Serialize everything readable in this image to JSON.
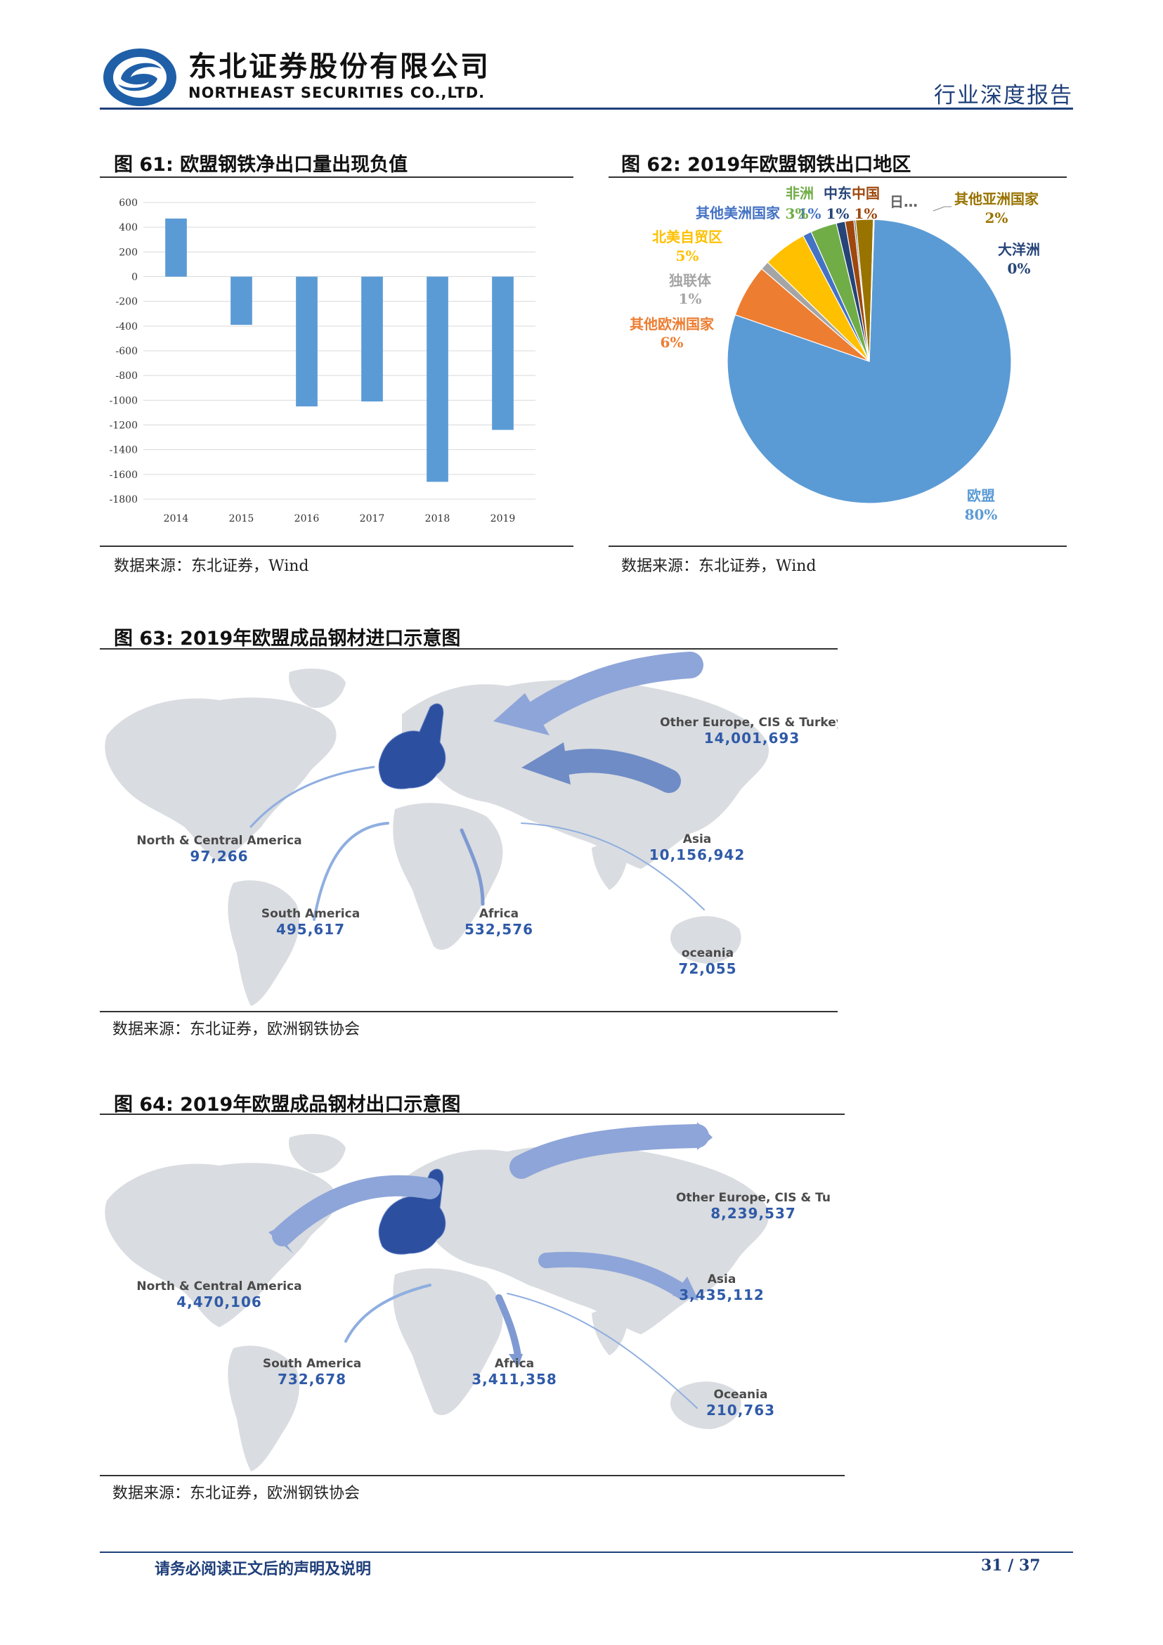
{
  "header": {
    "company_cn": "东北证券股份有限公司",
    "company_en": "NORTHEAST SECURITIES CO.,LTD.",
    "report_type": "行业深度报告",
    "brand_color": "#1f3f7a"
  },
  "figures": [
    {
      "title": "图 61:  欧盟钢铁净出口量出现负值",
      "source": "数据来源：东北证券，Wind"
    },
    {
      "title": "图 62:  2019年欧盟钢铁出口地区",
      "source": "数据来源：东北证券，Wind"
    },
    {
      "title": "图 63:  2019年欧盟成品钢材进口示意图",
      "source": "数据来源：东北证券，欧洲钢铁协会"
    },
    {
      "title": "图 64:  2019年欧盟成品钢材出口示意图",
      "source": "数据来源：东北证券，欧洲钢铁协会"
    }
  ],
  "chart_data": [
    {
      "type": "bar",
      "title": "",
      "categories": [
        "2014",
        "2015",
        "2016",
        "2017",
        "2018",
        "2019"
      ],
      "values": [
        470,
        -390,
        -1050,
        -1010,
        -1660,
        -1240
      ],
      "ylim": [
        -1800,
        600
      ],
      "yticks": [
        "600",
        "400",
        "200",
        "0",
        "-200",
        "-400",
        "-600",
        "-800",
        "-1000",
        "-1200",
        "-1400",
        "-1600",
        "-1800"
      ],
      "grid": true,
      "color": "#5b9bd5"
    },
    {
      "type": "pie",
      "title": "",
      "slices": [
        {
          "name": "欧盟",
          "value": 80,
          "label": "80%",
          "color": "#5b9bd5",
          "text_color": "#5b9bd5"
        },
        {
          "name": "其他欧洲国家",
          "value": 6,
          "label": "6%",
          "color": "#ed7d31",
          "text_color": "#ed7d31"
        },
        {
          "name": "独联体",
          "value": 1,
          "label": "1%",
          "color": "#a5a5a5",
          "text_color": "#a5a5a5"
        },
        {
          "name": "北美自贸区",
          "value": 5,
          "label": "5%",
          "color": "#ffc000",
          "text_color": "#ffc000"
        },
        {
          "name": "其他美洲国家",
          "value": 1,
          "label": "1%",
          "color": "#4472c4",
          "text_color": "#4472c4"
        },
        {
          "name": "非洲",
          "value": 3,
          "label": "3%",
          "color": "#70ad47",
          "text_color": "#70ad47"
        },
        {
          "name": "中东",
          "value": 1,
          "label": "1%",
          "color": "#264478",
          "text_color": "#264478"
        },
        {
          "name": "中国",
          "value": 1,
          "label": "1%",
          "color": "#9e480e",
          "text_color": "#9e480e"
        },
        {
          "name": "日…",
          "value": 0.2,
          "label": "",
          "color": "#636363",
          "text_color": "#636363"
        },
        {
          "name": "其他亚洲国家",
          "value": 2,
          "label": "2%",
          "color": "#997300",
          "text_color": "#997300"
        },
        {
          "name": "大洋洲",
          "value": 0.1,
          "label": "0%",
          "color": "#264478",
          "text_color": "#264478"
        }
      ]
    }
  ],
  "maps": [
    {
      "name": "import",
      "regions": [
        {
          "id": "other-europe",
          "name": "Other Europe, CIS & Turkey",
          "value": "14,001,693"
        },
        {
          "id": "asia",
          "name": "Asia",
          "value": "10,156,942"
        },
        {
          "id": "north-america",
          "name": "North & Central America",
          "value": "97,266"
        },
        {
          "id": "south-america",
          "name": "South America",
          "value": "495,617"
        },
        {
          "id": "africa",
          "name": "Africa",
          "value": "532,576"
        },
        {
          "id": "oceania",
          "name": "oceania",
          "value": "72,055"
        }
      ]
    },
    {
      "name": "export",
      "regions": [
        {
          "id": "other-europe",
          "name": "Other Europe, CIS & Tu",
          "value": "8,239,537"
        },
        {
          "id": "asia",
          "name": "Asia",
          "value": "3,435,112"
        },
        {
          "id": "north-america",
          "name": "North & Central America",
          "value": "4,470,106"
        },
        {
          "id": "south-america",
          "name": "South America",
          "value": "732,678"
        },
        {
          "id": "africa",
          "name": "Africa",
          "value": "3,411,358"
        },
        {
          "id": "oceania",
          "name": "Oceania",
          "value": "210,763"
        }
      ]
    }
  ],
  "footer": {
    "disclaimer": "请务必阅读正文后的声明及说明",
    "page": "31 / 37"
  }
}
